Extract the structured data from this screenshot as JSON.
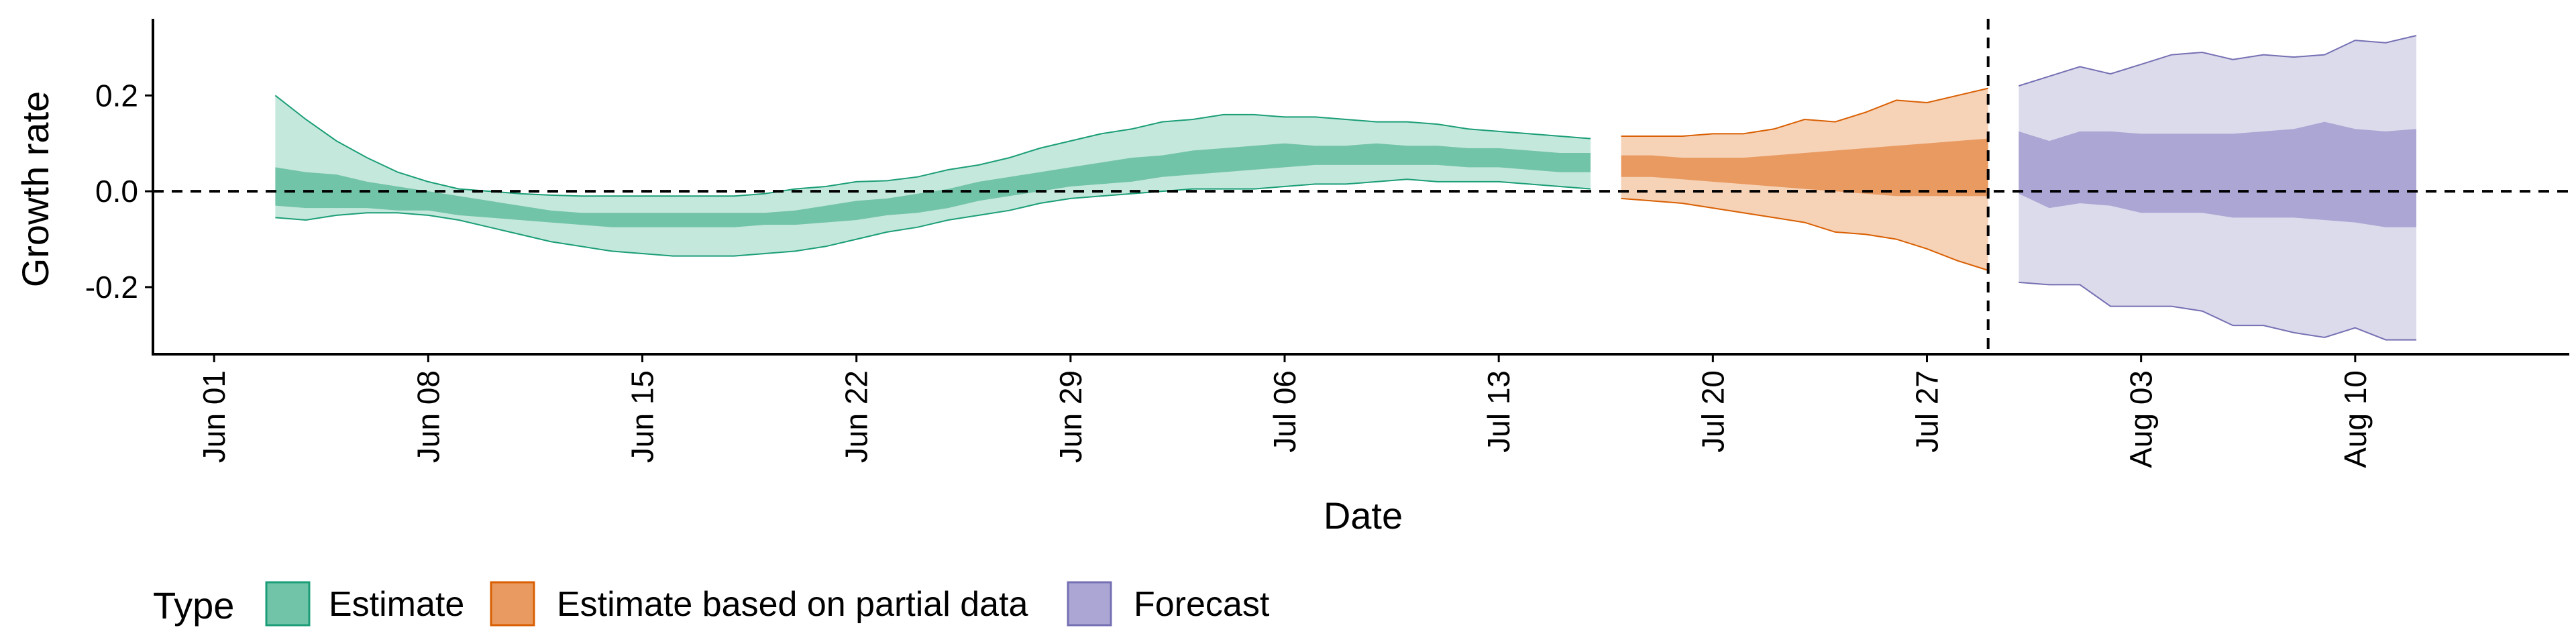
{
  "chart_data": {
    "type": "area",
    "xlabel": "Date",
    "ylabel": "Growth rate",
    "x_tick_labels": [
      "Jun 01",
      "Jun 08",
      "Jun 15",
      "Jun 22",
      "Jun 29",
      "Jul 06",
      "Jul 13",
      "Jul 20",
      "Jul 27",
      "Aug 03",
      "Aug 10"
    ],
    "x_tick_dates": [
      "2020-06-01",
      "2020-06-08",
      "2020-06-15",
      "2020-06-22",
      "2020-06-29",
      "2020-07-06",
      "2020-07-13",
      "2020-07-20",
      "2020-07-27",
      "2020-08-03",
      "2020-08-10"
    ],
    "y_tick_labels": [
      "-0.2",
      "0.0",
      "0.2"
    ],
    "y_tick_values": [
      -0.2,
      0.0,
      0.2
    ],
    "xlim": [
      "2020-05-30",
      "2020-08-17"
    ],
    "ylim": [
      -0.34,
      0.36
    ],
    "hline_y": 0.0,
    "vline_date": "2020-07-29",
    "legend": {
      "title": "Type",
      "position": "bottom-left",
      "entries": [
        {
          "label": "Estimate",
          "fill": "#72c4a8",
          "stroke": "#1b9e77"
        },
        {
          "label": "Estimate based on partial data",
          "fill": "#e99a60",
          "stroke": "#d95f02"
        },
        {
          "label": "Forecast",
          "fill": "#aba6d3",
          "stroke": "#7570b3"
        }
      ]
    },
    "series": [
      {
        "name": "Estimate",
        "outer_fill": "#c5e8dc",
        "inner_fill": "#72c4a8",
        "stroke": "#1b9e77",
        "dates": [
          "2020-06-03",
          "2020-06-04",
          "2020-06-05",
          "2020-06-06",
          "2020-06-07",
          "2020-06-08",
          "2020-06-09",
          "2020-06-10",
          "2020-06-11",
          "2020-06-12",
          "2020-06-13",
          "2020-06-14",
          "2020-06-15",
          "2020-06-16",
          "2020-06-17",
          "2020-06-18",
          "2020-06-19",
          "2020-06-20",
          "2020-06-21",
          "2020-06-22",
          "2020-06-23",
          "2020-06-24",
          "2020-06-25",
          "2020-06-26",
          "2020-06-27",
          "2020-06-28",
          "2020-06-29",
          "2020-06-30",
          "2020-07-01",
          "2020-07-02",
          "2020-07-03",
          "2020-07-04",
          "2020-07-05",
          "2020-07-06",
          "2020-07-07",
          "2020-07-08",
          "2020-07-09",
          "2020-07-10",
          "2020-07-11",
          "2020-07-12",
          "2020-07-13",
          "2020-07-14",
          "2020-07-15",
          "2020-07-16"
        ],
        "upper90": [
          0.2,
          0.15,
          0.105,
          0.07,
          0.04,
          0.02,
          0.005,
          0.0,
          -0.005,
          -0.008,
          -0.01,
          -0.01,
          -0.01,
          -0.01,
          -0.01,
          -0.01,
          -0.005,
          0.005,
          0.01,
          0.02,
          0.022,
          0.03,
          0.045,
          0.055,
          0.07,
          0.09,
          0.105,
          0.12,
          0.13,
          0.145,
          0.15,
          0.16,
          0.16,
          0.155,
          0.155,
          0.15,
          0.145,
          0.145,
          0.14,
          0.13,
          0.125,
          0.12,
          0.115,
          0.11
        ],
        "upper50": [
          0.05,
          0.04,
          0.035,
          0.02,
          0.01,
          0.0,
          -0.01,
          -0.02,
          -0.03,
          -0.04,
          -0.045,
          -0.045,
          -0.045,
          -0.045,
          -0.045,
          -0.045,
          -0.045,
          -0.04,
          -0.03,
          -0.02,
          -0.015,
          -0.005,
          0.005,
          0.02,
          0.03,
          0.04,
          0.05,
          0.06,
          0.07,
          0.075,
          0.085,
          0.09,
          0.095,
          0.1,
          0.095,
          0.095,
          0.1,
          0.095,
          0.095,
          0.09,
          0.09,
          0.085,
          0.08,
          0.08
        ],
        "lower50": [
          -0.03,
          -0.035,
          -0.035,
          -0.035,
          -0.04,
          -0.04,
          -0.05,
          -0.055,
          -0.06,
          -0.065,
          -0.07,
          -0.075,
          -0.075,
          -0.075,
          -0.075,
          -0.075,
          -0.07,
          -0.07,
          -0.065,
          -0.06,
          -0.05,
          -0.045,
          -0.035,
          -0.02,
          -0.01,
          0.0,
          0.01,
          0.015,
          0.02,
          0.03,
          0.035,
          0.04,
          0.045,
          0.05,
          0.055,
          0.055,
          0.055,
          0.055,
          0.055,
          0.05,
          0.05,
          0.045,
          0.04,
          0.04
        ],
        "lower90": [
          -0.055,
          -0.06,
          -0.05,
          -0.045,
          -0.045,
          -0.05,
          -0.06,
          -0.075,
          -0.09,
          -0.105,
          -0.115,
          -0.125,
          -0.13,
          -0.135,
          -0.135,
          -0.135,
          -0.13,
          -0.125,
          -0.115,
          -0.1,
          -0.085,
          -0.075,
          -0.06,
          -0.05,
          -0.04,
          -0.025,
          -0.015,
          -0.01,
          -0.005,
          0.0,
          0.005,
          0.005,
          0.005,
          0.01,
          0.015,
          0.015,
          0.02,
          0.025,
          0.02,
          0.02,
          0.02,
          0.015,
          0.01,
          0.005
        ]
      },
      {
        "name": "Estimate based on partial data",
        "outer_fill": "#f6d2b7",
        "inner_fill": "#e99a60",
        "stroke": "#d95f02",
        "dates": [
          "2020-07-17",
          "2020-07-18",
          "2020-07-19",
          "2020-07-20",
          "2020-07-21",
          "2020-07-22",
          "2020-07-23",
          "2020-07-24",
          "2020-07-25",
          "2020-07-26",
          "2020-07-27",
          "2020-07-28",
          "2020-07-29"
        ],
        "upper90": [
          0.115,
          0.115,
          0.115,
          0.12,
          0.12,
          0.13,
          0.15,
          0.145,
          0.165,
          0.19,
          0.185,
          0.2,
          0.215
        ],
        "upper50": [
          0.075,
          0.075,
          0.07,
          0.07,
          0.07,
          0.075,
          0.08,
          0.085,
          0.09,
          0.095,
          0.1,
          0.105,
          0.11
        ],
        "lower50": [
          0.03,
          0.03,
          0.025,
          0.02,
          0.015,
          0.01,
          0.005,
          0.0,
          -0.005,
          -0.01,
          -0.01,
          -0.01,
          -0.01
        ],
        "lower90": [
          -0.015,
          -0.02,
          -0.025,
          -0.035,
          -0.045,
          -0.055,
          -0.065,
          -0.085,
          -0.09,
          -0.1,
          -0.12,
          -0.145,
          -0.165
        ]
      },
      {
        "name": "Forecast",
        "outer_fill": "#dcdbec",
        "inner_fill": "#aba6d3",
        "stroke": "#7570b3",
        "dates": [
          "2020-07-30",
          "2020-07-31",
          "2020-08-01",
          "2020-08-02",
          "2020-08-03",
          "2020-08-04",
          "2020-08-05",
          "2020-08-06",
          "2020-08-07",
          "2020-08-08",
          "2020-08-09",
          "2020-08-10",
          "2020-08-11",
          "2020-08-12"
        ],
        "upper90": [
          0.22,
          0.24,
          0.26,
          0.245,
          0.265,
          0.285,
          0.29,
          0.275,
          0.285,
          0.28,
          0.285,
          0.315,
          0.31,
          0.325
        ],
        "upper50": [
          0.125,
          0.105,
          0.125,
          0.125,
          0.12,
          0.12,
          0.12,
          0.12,
          0.125,
          0.13,
          0.145,
          0.13,
          0.125,
          0.13
        ],
        "lower50": [
          -0.005,
          -0.035,
          -0.025,
          -0.03,
          -0.045,
          -0.045,
          -0.045,
          -0.055,
          -0.055,
          -0.055,
          -0.06,
          -0.065,
          -0.075,
          -0.075
        ],
        "lower90": [
          -0.19,
          -0.195,
          -0.195,
          -0.24,
          -0.24,
          -0.24,
          -0.25,
          -0.28,
          -0.28,
          -0.295,
          -0.305,
          -0.285,
          -0.31,
          -0.31
        ]
      }
    ]
  }
}
